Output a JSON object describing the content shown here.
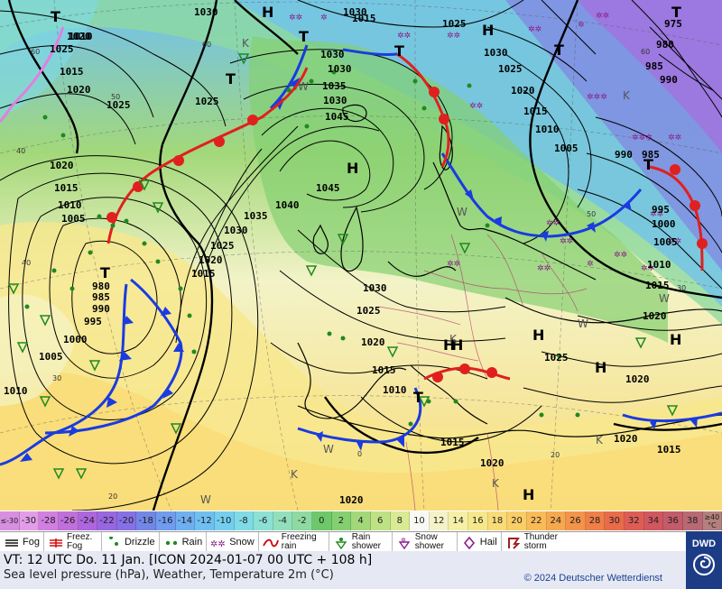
{
  "colors": {
    "ocean_cold": "#5a9fe0",
    "ocean_warm": "#f7e9a0",
    "land": "#7fce6b",
    "cold_front": "#1a3be0",
    "warm_front": "#e0201e",
    "occlusion": "#e07fe0"
  },
  "map": {
    "isobars": [
      {
        "label": "1030"
      },
      {
        "label": "1030"
      },
      {
        "label": "1015"
      },
      {
        "label": "1020"
      },
      {
        "label": "1025"
      },
      {
        "label": "1010"
      },
      {
        "label": "1015"
      },
      {
        "label": "1020"
      },
      {
        "label": "1025"
      },
      {
        "label": "1025"
      },
      {
        "label": "1030"
      },
      {
        "label": "1030"
      },
      {
        "label": "1035"
      },
      {
        "label": "1030"
      },
      {
        "label": "1045"
      },
      {
        "label": "1020"
      },
      {
        "label": "1015"
      },
      {
        "label": "1010"
      },
      {
        "label": "1005"
      },
      {
        "label": "1040"
      },
      {
        "label": "1035"
      },
      {
        "label": "1045"
      },
      {
        "label": "1030"
      },
      {
        "label": "1025"
      },
      {
        "label": "1020"
      },
      {
        "label": "1015"
      },
      {
        "label": "980"
      },
      {
        "label": "985"
      },
      {
        "label": "990"
      },
      {
        "label": "995"
      },
      {
        "label": "1000"
      },
      {
        "label": "1005"
      },
      {
        "label": "1010"
      },
      {
        "label": "1030"
      },
      {
        "label": "1025"
      },
      {
        "label": "1020"
      },
      {
        "label": "1015"
      },
      {
        "label": "1010"
      },
      {
        "label": "1015"
      },
      {
        "label": "1020"
      },
      {
        "label": "1020"
      },
      {
        "label": "1025"
      },
      {
        "label": "1020"
      },
      {
        "label": "1015"
      },
      {
        "label": "1020"
      },
      {
        "label": "1025"
      },
      {
        "label": "1030"
      },
      {
        "label": "1025"
      },
      {
        "label": "1020"
      },
      {
        "label": "1015"
      },
      {
        "label": "1010"
      },
      {
        "label": "1005"
      },
      {
        "label": "990"
      },
      {
        "label": "985"
      },
      {
        "label": "995"
      },
      {
        "label": "1000"
      },
      {
        "label": "1005"
      },
      {
        "label": "1010"
      },
      {
        "label": "1015"
      },
      {
        "label": "975"
      },
      {
        "label": "980"
      },
      {
        "label": "985"
      },
      {
        "label": "990"
      },
      {
        "label": "1020"
      }
    ],
    "systems": [
      {
        "label": "T"
      },
      {
        "label": "H"
      },
      {
        "label": "T"
      },
      {
        "label": "T"
      },
      {
        "label": "H"
      },
      {
        "label": "H"
      },
      {
        "label": "T"
      },
      {
        "label": "T"
      },
      {
        "label": "H"
      },
      {
        "label": "H"
      },
      {
        "label": "H"
      },
      {
        "label": "H"
      },
      {
        "label": "H"
      },
      {
        "label": "T"
      },
      {
        "label": "T"
      },
      {
        "label": "T"
      },
      {
        "label": "H"
      },
      {
        "label": "T"
      }
    ],
    "temp_marks": [
      {
        "label": "W"
      },
      {
        "label": "K"
      },
      {
        "label": "W"
      },
      {
        "label": "W"
      },
      {
        "label": "K"
      },
      {
        "label": "W"
      },
      {
        "label": "K"
      },
      {
        "label": "W"
      },
      {
        "label": "K"
      },
      {
        "label": "W"
      },
      {
        "label": "K"
      },
      {
        "label": "K"
      }
    ],
    "latlon": [
      {
        "label": "60"
      },
      {
        "label": "60"
      },
      {
        "label": "50"
      },
      {
        "label": "40"
      },
      {
        "label": "40"
      },
      {
        "label": "30"
      },
      {
        "label": "20"
      },
      {
        "label": "0"
      },
      {
        "label": "20"
      },
      {
        "label": "30"
      },
      {
        "label": "50"
      },
      {
        "label": "60"
      }
    ]
  },
  "colorbar": [
    {
      "label": "≤-30",
      "color": "#d78fe0"
    },
    {
      "label": "-30",
      "color": "#e39de8"
    },
    {
      "label": "-28",
      "color": "#d17fe0"
    },
    {
      "label": "-26",
      "color": "#c06fdb"
    },
    {
      "label": "-24",
      "color": "#ad66dd"
    },
    {
      "label": "-22",
      "color": "#9866e0"
    },
    {
      "label": "-20",
      "color": "#8670e6"
    },
    {
      "label": "-18",
      "color": "#7286e6"
    },
    {
      "label": "-16",
      "color": "#6f9cee"
    },
    {
      "label": "-14",
      "color": "#6eaef1"
    },
    {
      "label": "-12",
      "color": "#6fc0f1"
    },
    {
      "label": "-10",
      "color": "#74cfef"
    },
    {
      "label": "-8",
      "color": "#7fdbe6"
    },
    {
      "label": "-6",
      "color": "#8ce0d4"
    },
    {
      "label": "-4",
      "color": "#92e0bb"
    },
    {
      "label": "-2",
      "color": "#8edaa0"
    },
    {
      "label": "0",
      "color": "#6ec86a"
    },
    {
      "label": "2",
      "color": "#84d071"
    },
    {
      "label": "4",
      "color": "#a3d87a"
    },
    {
      "label": "6",
      "color": "#bfe186"
    },
    {
      "label": "8",
      "color": "#d8ea94"
    },
    {
      "label": "10",
      "color": "#f9f9f4"
    },
    {
      "label": "12",
      "color": "#f3f3c8"
    },
    {
      "label": "14",
      "color": "#f5f0a6"
    },
    {
      "label": "16",
      "color": "#f7e78c"
    },
    {
      "label": "18",
      "color": "#f9dc78"
    },
    {
      "label": "20",
      "color": "#facd66"
    },
    {
      "label": "22",
      "color": "#f8bb58"
    },
    {
      "label": "24",
      "color": "#f6a84f"
    },
    {
      "label": "26",
      "color": "#f3944a"
    },
    {
      "label": "28",
      "color": "#ef7f48"
    },
    {
      "label": "30",
      "color": "#e86b4a"
    },
    {
      "label": "32",
      "color": "#dd5d55"
    },
    {
      "label": "34",
      "color": "#d0575f"
    },
    {
      "label": "36",
      "color": "#c25b6a"
    },
    {
      "label": "38",
      "color": "#b86a74"
    },
    {
      "label": "≥40 °C",
      "color": "#b4807e"
    }
  ],
  "legend": [
    {
      "label": "Fog",
      "icon": "fog-icon"
    },
    {
      "label": "Freez. Fog",
      "icon": "freezing-fog-icon"
    },
    {
      "label": "Drizzle",
      "icon": "drizzle-icon"
    },
    {
      "label": "Rain",
      "icon": "rain-icon"
    },
    {
      "label": "Snow",
      "icon": "snow-icon"
    },
    {
      "label": "Freezing rain",
      "icon": "freezing-rain-icon"
    },
    {
      "label": "Rain shower",
      "icon": "rain-shower-icon"
    },
    {
      "label": "Snow shower",
      "icon": "snow-shower-icon"
    },
    {
      "label": "Hail",
      "icon": "hail-icon"
    },
    {
      "label": "Thunder storm",
      "icon": "thunderstorm-icon"
    }
  ],
  "footer": {
    "valid_time": "VT: 12 UTC Do.   11 Jan. [ICON 2024-01-07  00 UTC + 108 h]",
    "parameters": "Sea level pressure (hPa), Weather, Temperature 2m (°C)",
    "copyright": "© 2024 Deutscher Wetterdienst",
    "logo": "DWD"
  }
}
